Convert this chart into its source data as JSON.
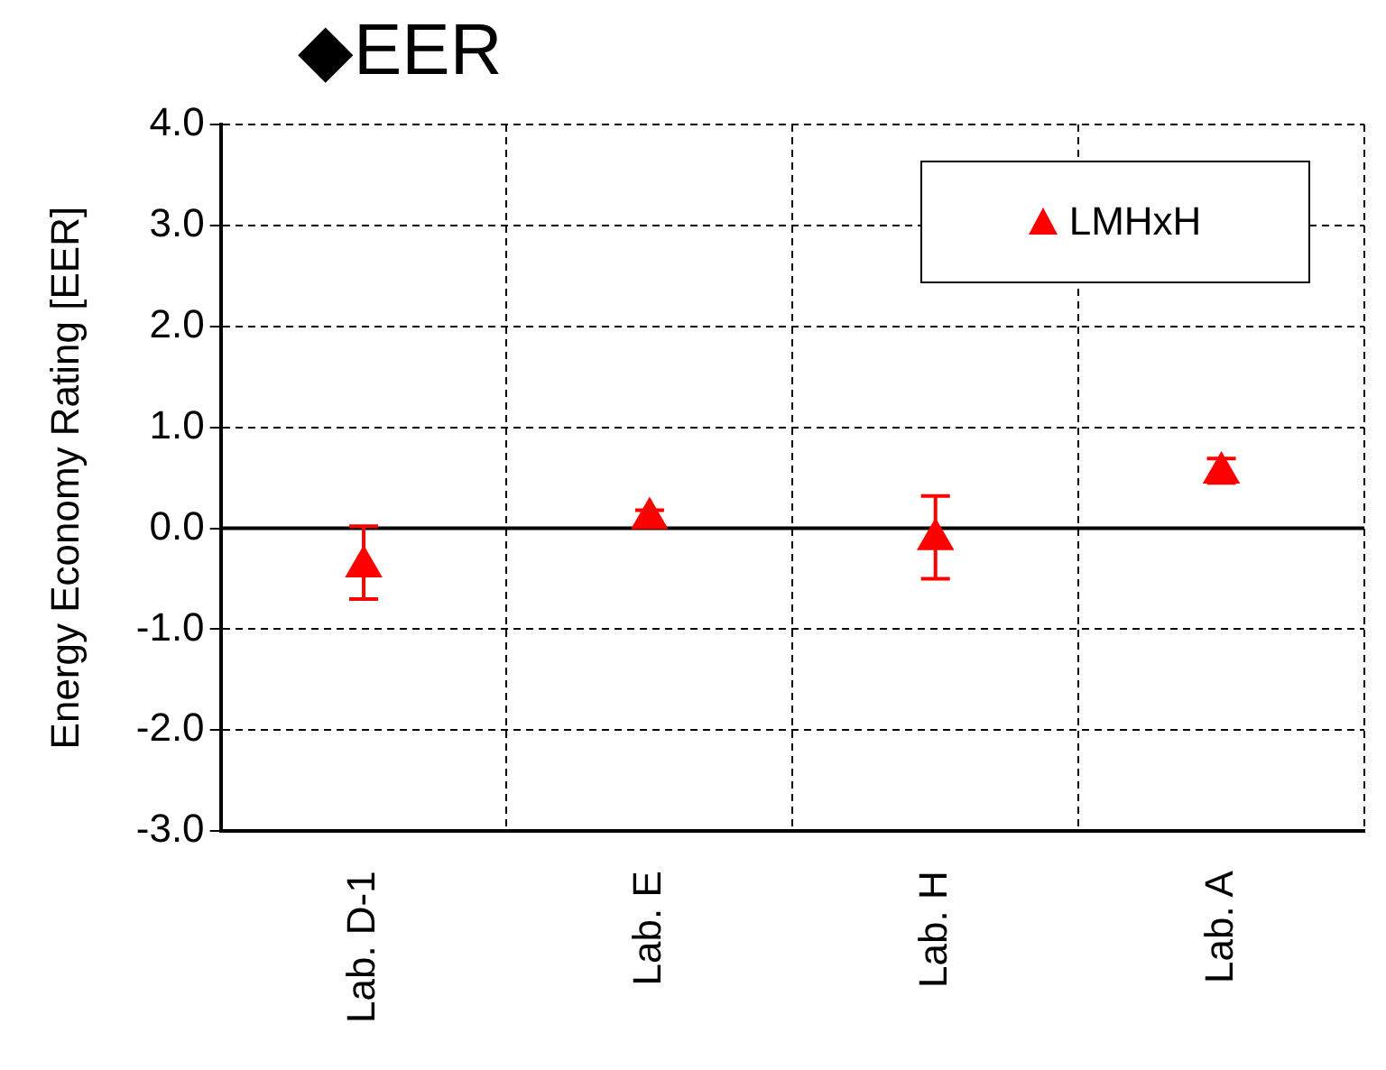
{
  "chart_data": {
    "type": "scatter",
    "title": "◆EER",
    "ylabel": "Energy Economy Rating [EER]",
    "categories": [
      "Lab. D-1",
      "Lab. E",
      "Lab. H",
      "Lab. A"
    ],
    "series": [
      {
        "name": "LMHxH",
        "color": "#ff0000",
        "values": [
          -0.38,
          0.1,
          -0.11,
          0.55
        ],
        "errors": [
          [
            -0.7,
            0.02
          ],
          0.08,
          [
            -0.5,
            0.32
          ],
          [
            0.45,
            0.69
          ]
        ]
      }
    ],
    "ylim": [
      -3,
      4
    ],
    "yticks": [
      {
        "value": -3,
        "label": "-3.0"
      },
      {
        "value": -2,
        "label": "-2.0"
      },
      {
        "value": -1,
        "label": "-1.0"
      },
      {
        "value": 0,
        "label": "0.0"
      },
      {
        "value": 1,
        "label": "1.0"
      },
      {
        "value": 2,
        "label": "2.0"
      },
      {
        "value": 3,
        "label": "3.0"
      },
      {
        "value": 4,
        "label": "4.0"
      }
    ],
    "ref_lines": [
      {
        "axis": "y",
        "value": 0,
        "color": "#000000",
        "line_style": "solid"
      }
    ],
    "grid": true,
    "legend": "top right",
    "marker": "triangle"
  }
}
